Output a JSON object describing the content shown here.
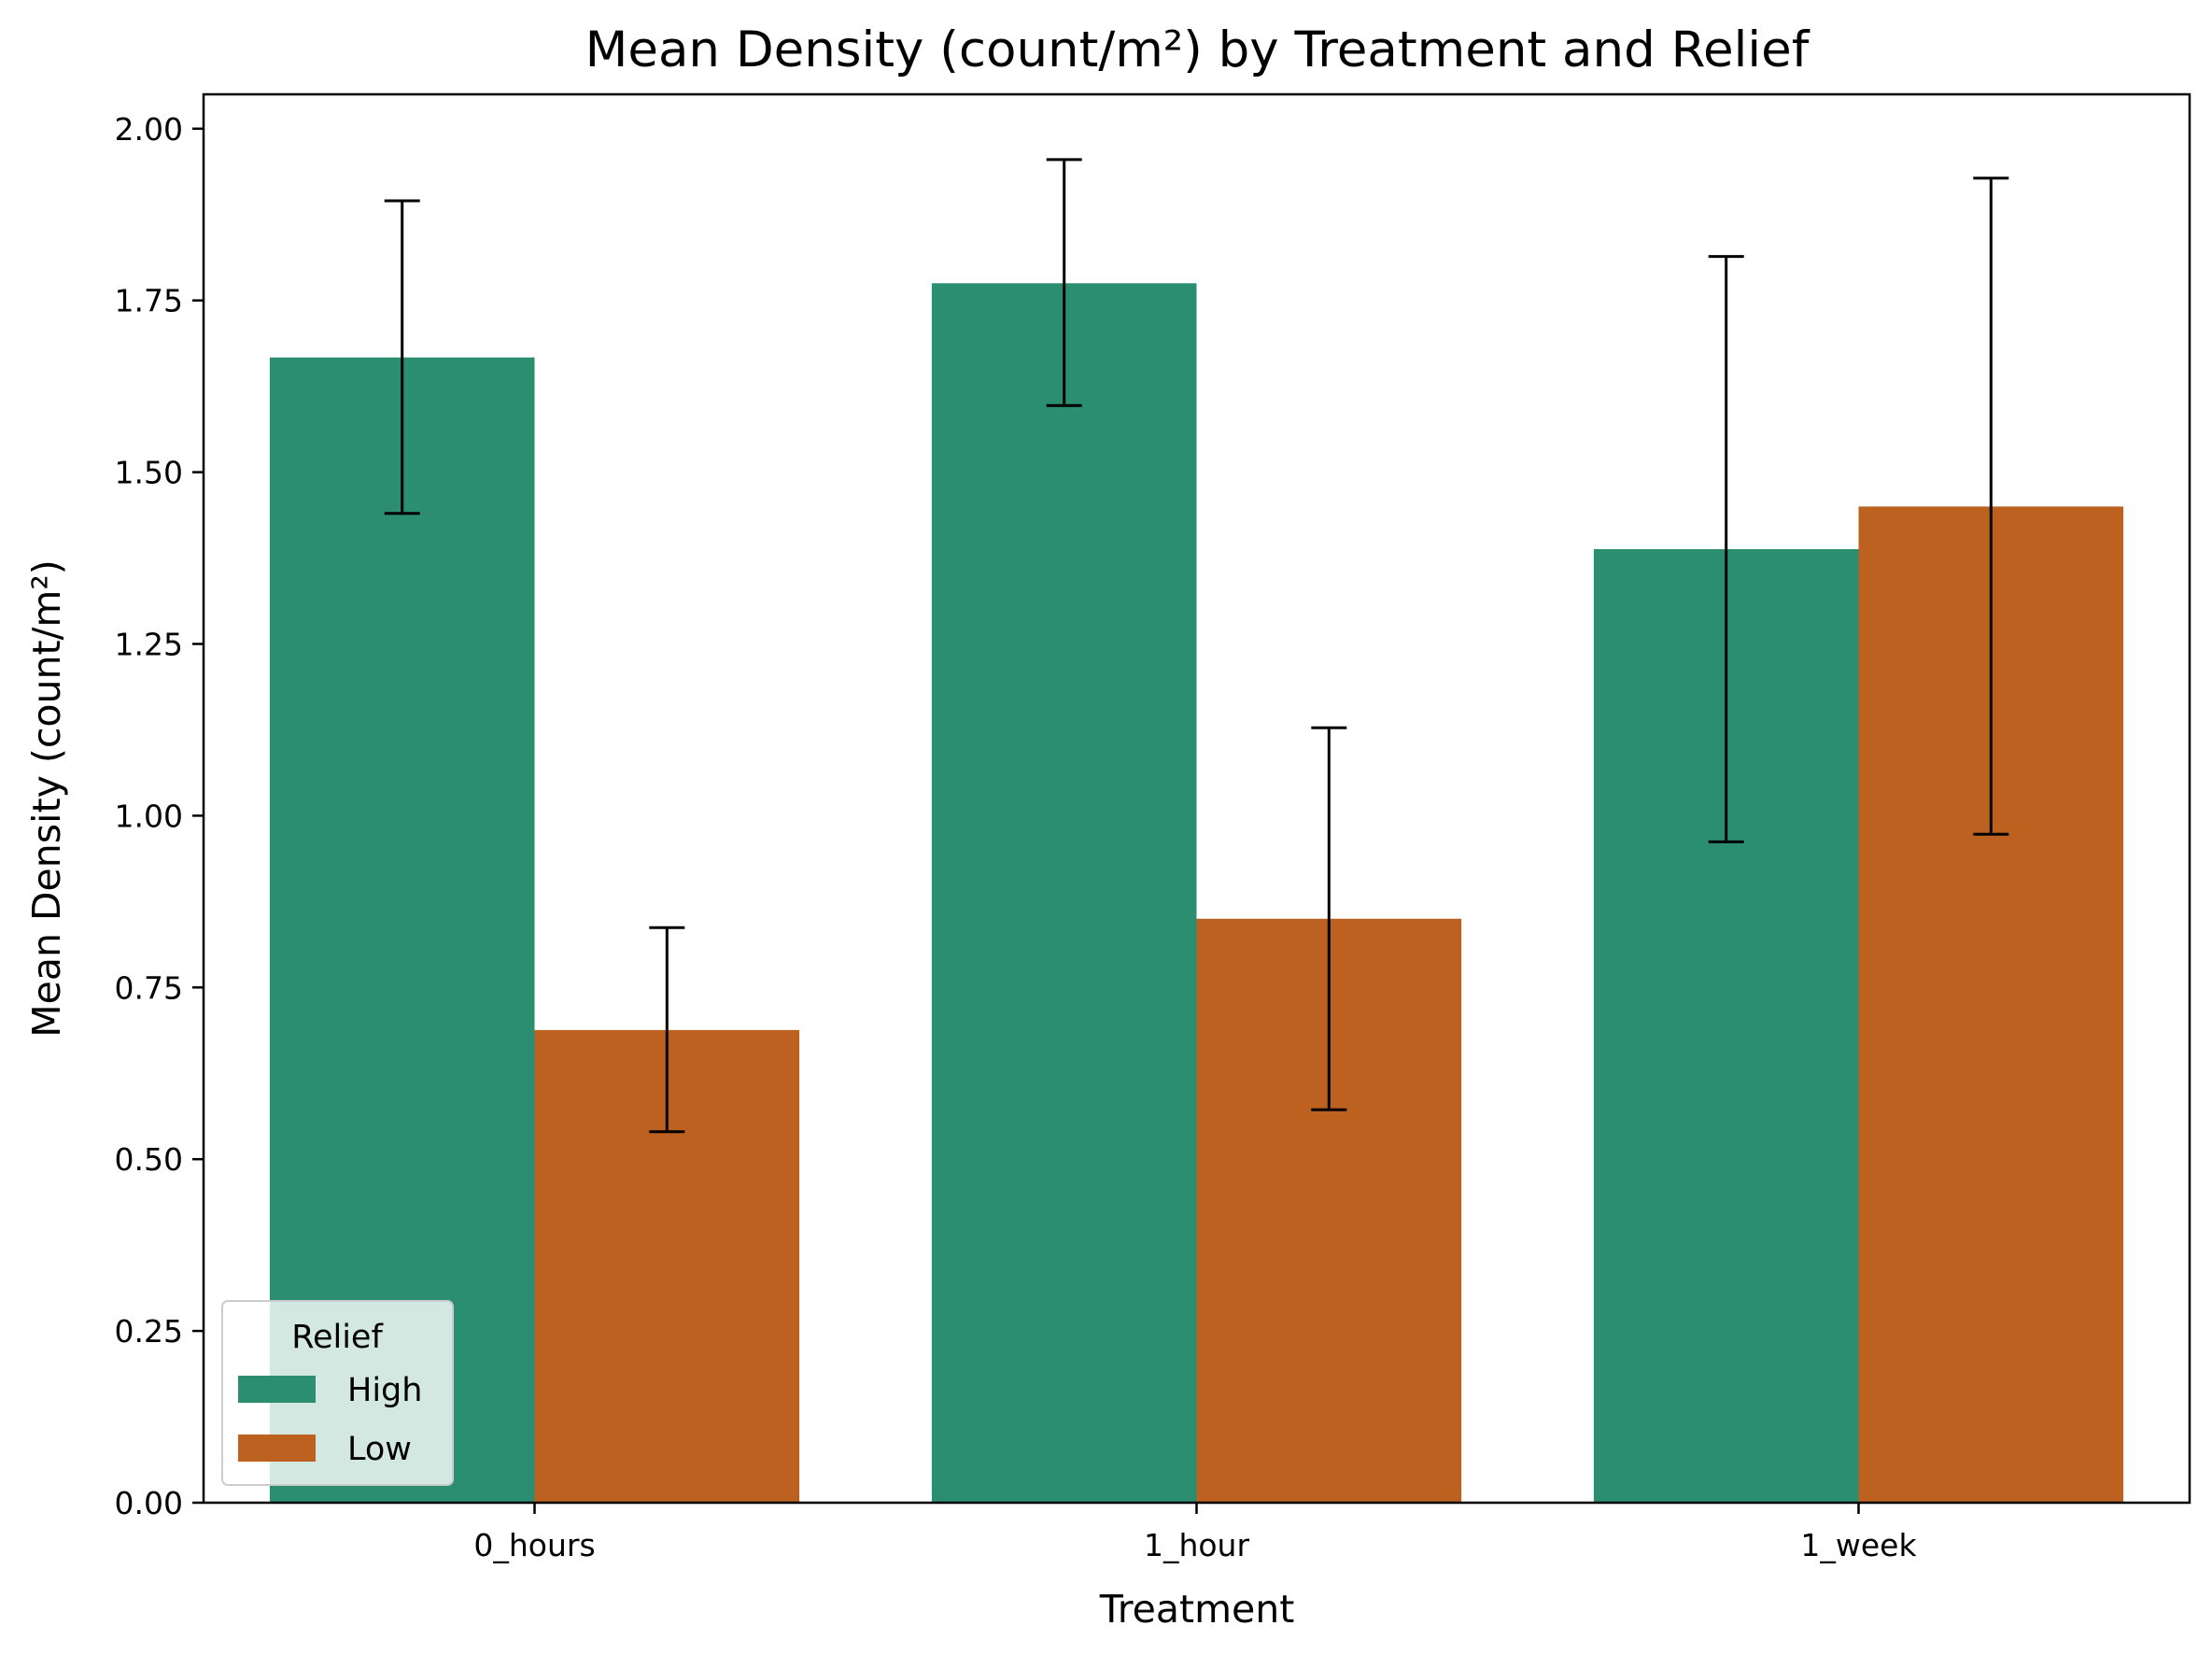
{
  "chart_data": {
    "type": "bar",
    "title": "Mean Density (count/m²) by Treatment and Relief",
    "xlabel": "Treatment",
    "ylabel": "Mean Density (count/m²)",
    "categories": [
      "0_hours",
      "1_hour",
      "1_week"
    ],
    "ylim": [
      0,
      2.05
    ],
    "yticks": [
      "0.00",
      "0.25",
      "0.50",
      "0.75",
      "1.00",
      "1.25",
      "1.50",
      "1.75",
      "2.00"
    ],
    "grid": false,
    "legend": {
      "title": "Relief",
      "placement": "lower-left"
    },
    "series": [
      {
        "name": "High",
        "color": "#2b8e70",
        "values": [
          1.667,
          1.775,
          1.388
        ],
        "err_low": [
          1.44,
          1.597,
          0.962
        ],
        "err_high": [
          1.895,
          1.955,
          1.814
        ]
      },
      {
        "name": "Low",
        "color": "#bc611f",
        "values": [
          0.688,
          0.85,
          1.45
        ],
        "err_low": [
          0.54,
          0.572,
          0.973
        ],
        "err_high": [
          0.837,
          1.128,
          1.928
        ]
      }
    ]
  }
}
